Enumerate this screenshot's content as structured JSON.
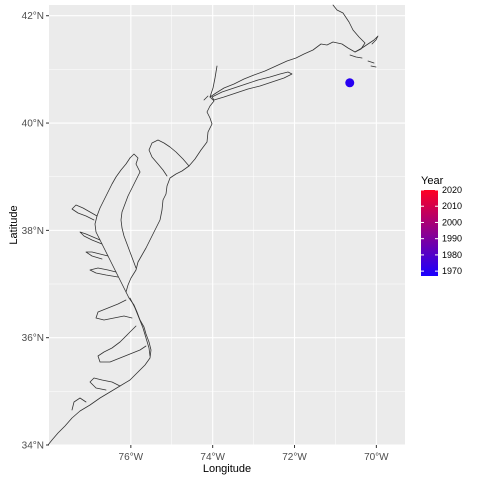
{
  "chart_data": {
    "type": "scatter",
    "xlabel": "Longitude",
    "ylabel": "Latitude",
    "xlim": [
      -78.0,
      -69.3
    ],
    "ylim": [
      34.0,
      42.2
    ],
    "grid": true,
    "x_ticks": [
      {
        "value": -76,
        "label": "76°W"
      },
      {
        "value": -74,
        "label": "74°W"
      },
      {
        "value": -72,
        "label": "72°W"
      },
      {
        "value": -70,
        "label": "70°W"
      }
    ],
    "y_ticks": [
      {
        "value": 34,
        "label": "34°N"
      },
      {
        "value": 36,
        "label": "36°N"
      },
      {
        "value": 38,
        "label": "38°N"
      },
      {
        "value": 40,
        "label": "40°N"
      },
      {
        "value": 42,
        "label": "42°N"
      }
    ],
    "points": [
      {
        "lon": -70.65,
        "lat": 40.75,
        "year": 1970
      }
    ],
    "legend": {
      "title": "Year",
      "placement": "right",
      "range": [
        1967,
        2020
      ],
      "color_low": "#1a00ff",
      "color_high": "#ff0022",
      "breaks": [
        {
          "value": 2020,
          "label": "2020"
        },
        {
          "value": 2010,
          "label": "2010"
        },
        {
          "value": 2000,
          "label": "2000"
        },
        {
          "value": 1990,
          "label": "1990"
        },
        {
          "value": 1980,
          "label": "1980"
        },
        {
          "value": 1970,
          "label": "1970"
        }
      ]
    }
  },
  "colors": {
    "panel_bg": "#ebebeb",
    "grid": "#ffffff",
    "coastline": "#333333"
  }
}
